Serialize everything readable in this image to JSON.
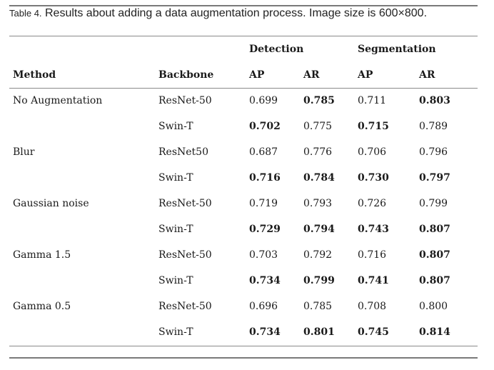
{
  "caption": {
    "label": "Table 4.",
    "text": " Results about adding a data augmentation process. Image size is 600×800."
  },
  "groups": {
    "detection": "Detection",
    "segmentation": "Segmentation"
  },
  "columns": {
    "method": "Method",
    "backbone": "Backbone",
    "det_ap": "AP",
    "det_ar": "AR",
    "seg_ap": "AP",
    "seg_ar": "AR"
  },
  "rows": [
    {
      "method": "No Augmentation",
      "backbone": "ResNet-50",
      "det_ap": "0.699",
      "det_ar": "0.785",
      "seg_ap": "0.711",
      "seg_ar": "0.803",
      "bold": {
        "det_ap": false,
        "det_ar": true,
        "seg_ap": false,
        "seg_ar": true
      }
    },
    {
      "method": "",
      "backbone": "Swin-T",
      "det_ap": "0.702",
      "det_ar": "0.775",
      "seg_ap": "0.715",
      "seg_ar": "0.789",
      "bold": {
        "det_ap": true,
        "det_ar": false,
        "seg_ap": true,
        "seg_ar": false
      }
    },
    {
      "method": "Blur",
      "backbone": "ResNet50",
      "det_ap": "0.687",
      "det_ar": "0.776",
      "seg_ap": "0.706",
      "seg_ar": "0.796",
      "bold": {
        "det_ap": false,
        "det_ar": false,
        "seg_ap": false,
        "seg_ar": false
      }
    },
    {
      "method": "",
      "backbone": "Swin-T",
      "det_ap": "0.716",
      "det_ar": "0.784",
      "seg_ap": "0.730",
      "seg_ar": "0.797",
      "bold": {
        "det_ap": true,
        "det_ar": true,
        "seg_ap": true,
        "seg_ar": true
      }
    },
    {
      "method": "Gaussian noise",
      "backbone": "ResNet-50",
      "det_ap": "0.719",
      "det_ar": "0.793",
      "seg_ap": "0.726",
      "seg_ar": "0.799",
      "bold": {
        "det_ap": false,
        "det_ar": false,
        "seg_ap": false,
        "seg_ar": false
      }
    },
    {
      "method": "",
      "backbone": "Swin-T",
      "det_ap": "0.729",
      "det_ar": "0.794",
      "seg_ap": "0.743",
      "seg_ar": "0.807",
      "bold": {
        "det_ap": true,
        "det_ar": true,
        "seg_ap": true,
        "seg_ar": true
      }
    },
    {
      "method": "Gamma 1.5",
      "backbone": "ResNet-50",
      "det_ap": "0.703",
      "det_ar": "0.792",
      "seg_ap": "0.716",
      "seg_ar": "0.807",
      "bold": {
        "det_ap": false,
        "det_ar": false,
        "seg_ap": false,
        "seg_ar": true
      }
    },
    {
      "method": "",
      "backbone": "Swin-T",
      "det_ap": "0.734",
      "det_ar": "0.799",
      "seg_ap": "0.741",
      "seg_ar": "0.807",
      "bold": {
        "det_ap": true,
        "det_ar": true,
        "seg_ap": true,
        "seg_ar": true
      }
    },
    {
      "method": "Gamma 0.5",
      "backbone": "ResNet-50",
      "det_ap": "0.696",
      "det_ar": "0.785",
      "seg_ap": "0.708",
      "seg_ar": "0.800",
      "bold": {
        "det_ap": false,
        "det_ar": false,
        "seg_ap": false,
        "seg_ar": false
      }
    },
    {
      "method": "",
      "backbone": "Swin-T",
      "det_ap": "0.734",
      "det_ar": "0.801",
      "seg_ap": "0.745",
      "seg_ar": "0.814",
      "bold": {
        "det_ap": true,
        "det_ar": true,
        "seg_ap": true,
        "seg_ar": true
      }
    }
  ]
}
